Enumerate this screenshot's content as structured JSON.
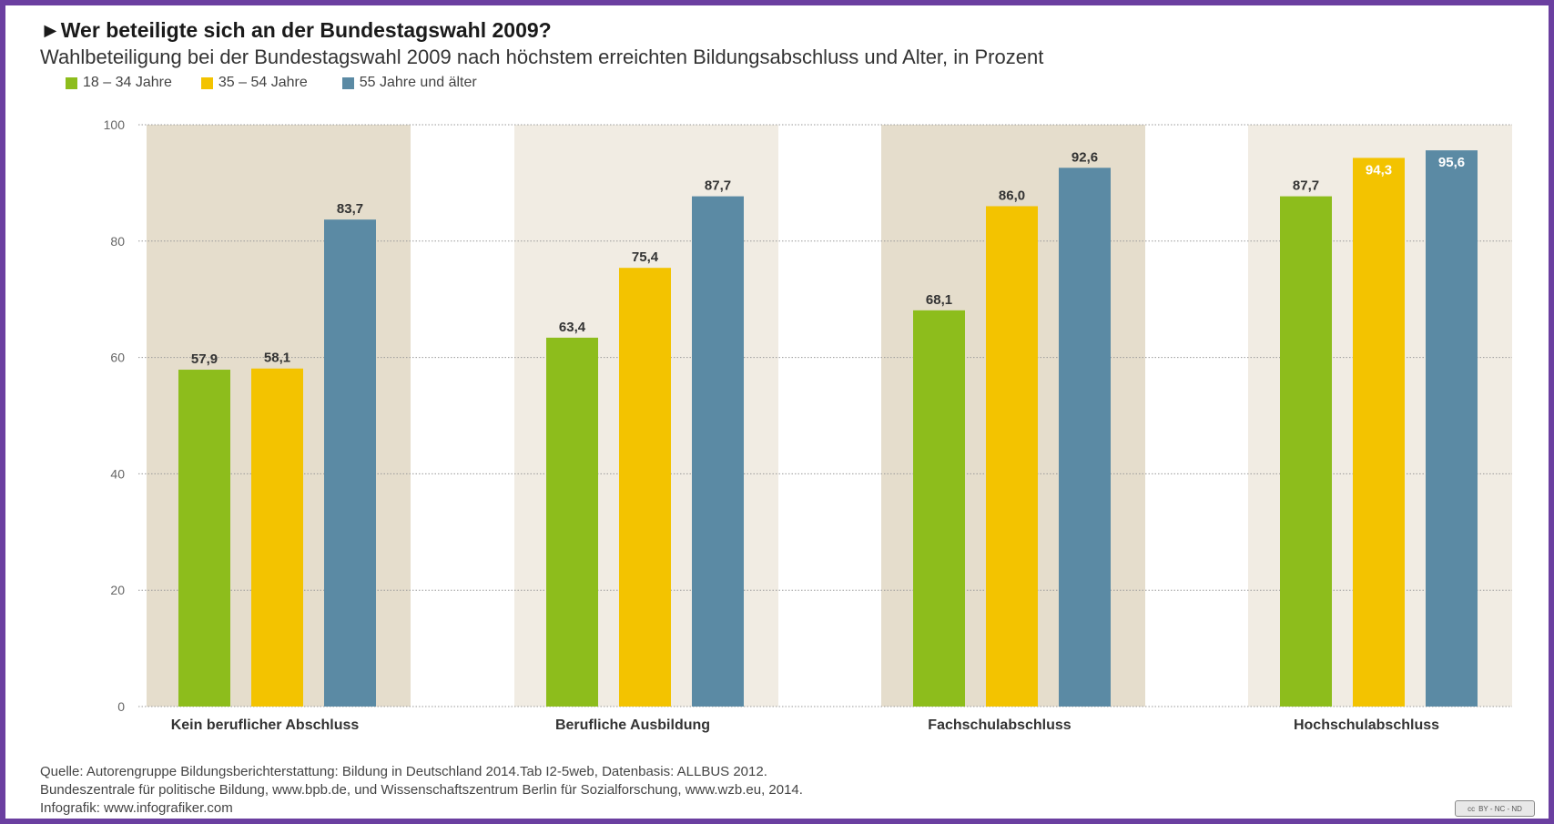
{
  "header": {
    "title": "►Wer beteiligte sich an der Bundestagswahl 2009?",
    "subtitle": "Wahlbeteiligung bei der Bundestagswahl 2009 nach höchstem erreichten Bildungsabschluss und Alter, in Prozent"
  },
  "legend": [
    {
      "label": "18 – 34 Jahre",
      "color": "#8dbd1c"
    },
    {
      "label": "35 – 54 Jahre",
      "color": "#f3c300"
    },
    {
      "label": "55 Jahre und älter",
      "color": "#5b8aa4"
    }
  ],
  "chart_data": {
    "type": "bar",
    "categories": [
      "Kein beruflicher Abschluss",
      "Berufliche Ausbildung",
      "Fachschulabschluss",
      "Hochschulabschluss"
    ],
    "series": [
      {
        "name": "18 – 34 Jahre",
        "values": [
          57.9,
          63.4,
          68.1,
          87.7
        ],
        "labels": [
          "57,9",
          "63,4",
          "68,1",
          "87,7"
        ],
        "color": "#8dbd1c"
      },
      {
        "name": "35 – 54 Jahre",
        "values": [
          58.1,
          75.4,
          86.0,
          94.3
        ],
        "labels": [
          "58,1",
          "75,4",
          "86,0",
          "94,3"
        ],
        "color": "#f3c300"
      },
      {
        "name": "55 Jahre und älter",
        "values": [
          83.7,
          87.7,
          92.6,
          95.6
        ],
        "labels": [
          "83,7",
          "87,7",
          "92,6",
          "95,6"
        ],
        "color": "#5b8aa4"
      }
    ],
    "yticks": [
      0,
      20,
      40,
      60,
      80,
      100
    ],
    "ylim": [
      0,
      100
    ],
    "grid": true,
    "legend_position": "top-left",
    "panel_colors": [
      "#e5ddcc",
      "#f1ece3",
      "#e5ddcc",
      "#f1ece3"
    ]
  },
  "source": {
    "line1": "Quelle: Autorengruppe Bildungsberichterstattung: Bildung in Deutschland 2014.Tab I2-5web, Datenbasis: ALLBUS 2012.",
    "line2": "Bundeszentrale für politische Bildung, www.bpb.de, und Wissenschaftszentrum Berlin für Sozialforschung, www.wzb.eu, 2014.",
    "line3": "Infografik: www.infografiker.com"
  },
  "license": {
    "cc": "cc",
    "text": "BY - NC - ND"
  }
}
